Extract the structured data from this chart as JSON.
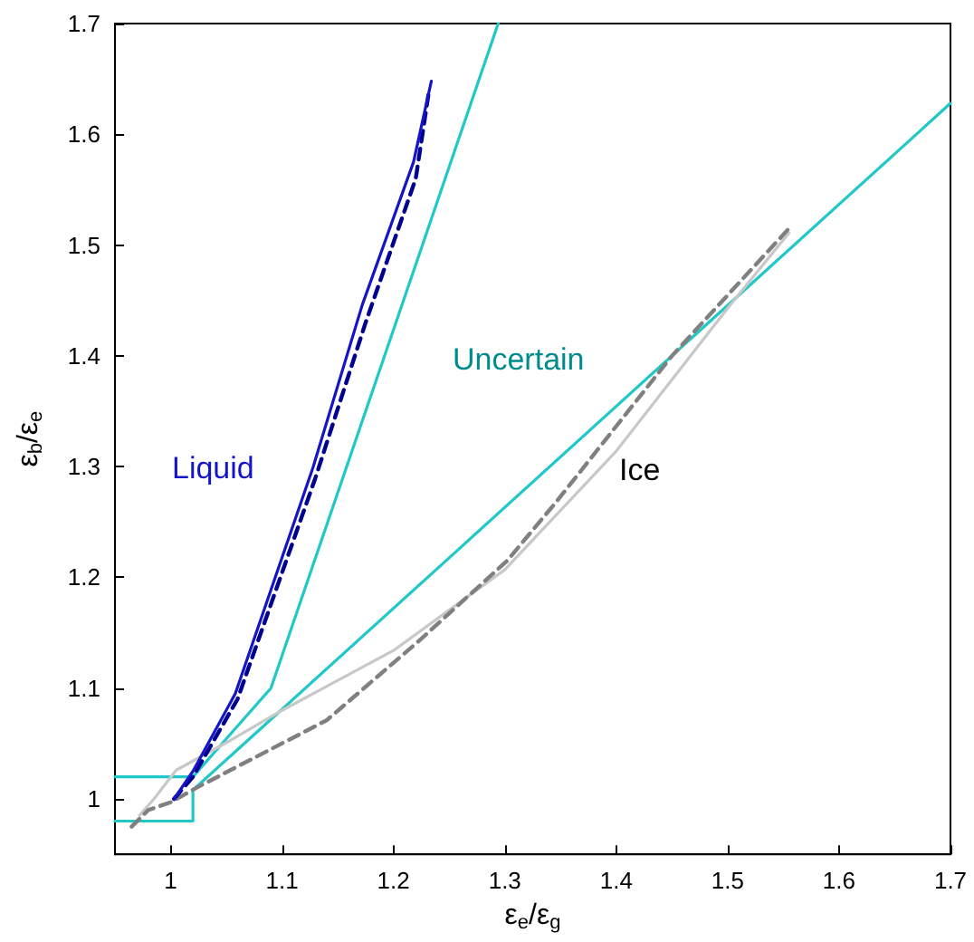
{
  "chart_data": {
    "type": "line",
    "xlabel": "ε$_{e}$/ε$_{g}$",
    "ylabel": "ε$_{b}$/ε$_{e}$",
    "xlim": [
      0.95,
      1.7
    ],
    "ylim": [
      0.95,
      1.7
    ],
    "xticks": [
      1,
      1.1,
      1.2,
      1.3,
      1.4,
      1.5,
      1.6,
      1.7
    ],
    "yticks": [
      1,
      1.1,
      1.2,
      1.3,
      1.4,
      1.5,
      1.6,
      1.7
    ],
    "grid": false,
    "marker": "none",
    "series": [
      {
        "color": "#20c8c8",
        "line_style": "solid",
        "x": [
          0.95,
          1.02,
          1.09,
          1.294
        ],
        "values": [
          1.02,
          1.02,
          1.1,
          1.7
        ]
      },
      {
        "color": "#20c8c8",
        "line_style": "solid",
        "x": [
          0.95,
          1.02,
          1.02,
          1.7
        ],
        "values": [
          0.98,
          0.98,
          1.008,
          1.628
        ]
      },
      {
        "color": "#c8c8c8",
        "line_style": "solid",
        "x": [
          0.972,
          0.985,
          1.005,
          1.054,
          1.1,
          1.2,
          1.3,
          1.4,
          1.5,
          1.555
        ],
        "values": [
          0.985,
          1.0,
          1.026,
          1.053,
          1.08,
          1.134,
          1.207,
          1.314,
          1.443,
          1.511
        ]
      },
      {
        "color": "#808080",
        "line_style": "dashed",
        "x": [
          0.965,
          0.98,
          1.0,
          1.023,
          1.14,
          1.221,
          1.302,
          1.346,
          1.45,
          1.555
        ],
        "values": [
          0.975,
          0.99,
          0.997,
          1.01,
          1.071,
          1.141,
          1.215,
          1.268,
          1.4,
          1.515
        ]
      },
      {
        "color": "#000090",
        "line_style": "dashed",
        "x": [
          1.003,
          1.02,
          1.06,
          1.13,
          1.175,
          1.22,
          1.232
        ],
        "values": [
          1.0,
          1.02,
          1.09,
          1.29,
          1.43,
          1.56,
          1.64
        ]
      },
      {
        "color": "#1414c8",
        "line_style": "solid",
        "x": [
          1.003,
          1.02,
          1.058,
          1.128,
          1.172,
          1.218,
          1.234
        ],
        "values": [
          1.0,
          1.025,
          1.095,
          1.3,
          1.446,
          1.575,
          1.648
        ]
      }
    ],
    "annotations": [
      "Liquid",
      "Uncertain",
      "Ice"
    ]
  }
}
